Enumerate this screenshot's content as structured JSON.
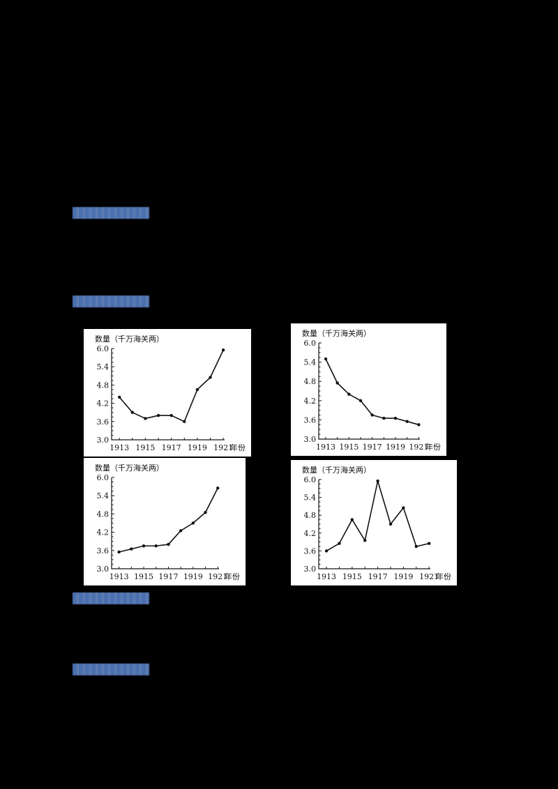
{
  "document": {
    "background": "#000000",
    "label_color": "#5b7fb8",
    "labels": [
      {
        "text": "",
        "note": "blurred blue label"
      },
      {
        "text": "",
        "note": "blurred blue label"
      },
      {
        "text": "",
        "note": "blurred blue label"
      },
      {
        "text": "",
        "note": "blurred blue label"
      }
    ]
  },
  "chart_data": [
    {
      "type": "line",
      "panel": "top-left",
      "title": "",
      "ylabel": "数量（千万海关两）",
      "xlabel": "年份",
      "x": [
        1913,
        1914,
        1915,
        1916,
        1917,
        1918,
        1919,
        1920,
        1921
      ],
      "x_tick_labels": [
        "1913",
        "1915",
        "1917",
        "1919",
        "1921"
      ],
      "y_tick_labels": [
        "3.0",
        "3.6",
        "4.2",
        "4.8",
        "5.4",
        "6.0"
      ],
      "ylim": [
        3.0,
        6.0
      ],
      "values": [
        4.4,
        3.9,
        3.7,
        3.8,
        3.8,
        3.6,
        4.65,
        5.05,
        5.95
      ],
      "grid": false
    },
    {
      "type": "line",
      "panel": "top-right",
      "title": "",
      "ylabel": "数量（千万海关两）",
      "xlabel": "年份",
      "x": [
        1913,
        1914,
        1915,
        1916,
        1917,
        1918,
        1919,
        1920,
        1921
      ],
      "x_tick_labels": [
        "1913",
        "1915",
        "1917",
        "1919",
        "1921"
      ],
      "y_tick_labels": [
        "3.0",
        "3.6",
        "4.2",
        "4.8",
        "5.4",
        "6.0"
      ],
      "ylim": [
        3.0,
        6.0
      ],
      "values": [
        5.5,
        4.75,
        4.4,
        4.2,
        3.75,
        3.65,
        3.65,
        3.55,
        3.45
      ],
      "grid": false
    },
    {
      "type": "line",
      "panel": "bottom-left",
      "title": "",
      "ylabel": "数量（千万海关两）",
      "xlabel": "年份",
      "x": [
        1913,
        1914,
        1915,
        1916,
        1917,
        1918,
        1919,
        1920,
        1921
      ],
      "x_tick_labels": [
        "1913",
        "1915",
        "1917",
        "1919",
        "1921"
      ],
      "y_tick_labels": [
        "3.0",
        "3.6",
        "4.2",
        "4.8",
        "5.4",
        "6.0"
      ],
      "ylim": [
        3.0,
        6.0
      ],
      "values": [
        3.55,
        3.65,
        3.75,
        3.75,
        3.8,
        4.25,
        4.5,
        4.85,
        5.65
      ],
      "grid": false
    },
    {
      "type": "line",
      "panel": "bottom-right",
      "title": "",
      "ylabel": "数量（千万海关两）",
      "xlabel": "年份",
      "x": [
        1913,
        1914,
        1915,
        1916,
        1917,
        1918,
        1919,
        1920,
        1921
      ],
      "x_tick_labels": [
        "1913",
        "1915",
        "1917",
        "1919",
        "1921"
      ],
      "y_tick_labels": [
        "3.0",
        "3.6",
        "4.2",
        "4.8",
        "5.4",
        "6.0"
      ],
      "ylim": [
        3.0,
        6.0
      ],
      "values": [
        3.6,
        3.85,
        4.65,
        3.95,
        5.95,
        4.5,
        5.05,
        3.75,
        3.85
      ],
      "grid": false
    }
  ]
}
